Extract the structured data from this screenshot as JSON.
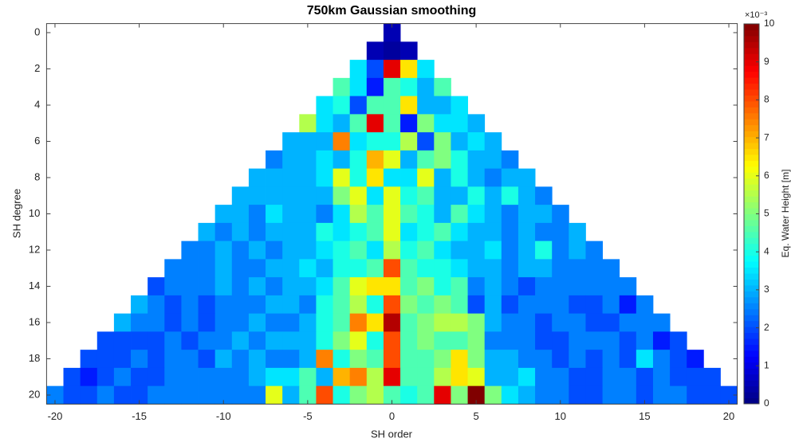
{
  "chart_data": {
    "type": "heatmap",
    "title": "750km Gaussian smoothing",
    "xlabel": "SH order",
    "ylabel": "SH degree",
    "colorbar_label": "Eq. Water Height [m]",
    "colorbar_multiplier": "×10⁻³",
    "colormap": "jet",
    "clim": [
      0,
      10
    ],
    "colorbar_ticks": [
      0,
      1,
      2,
      3,
      4,
      5,
      6,
      7,
      8,
      9,
      10
    ],
    "xlim": [
      -20.5,
      20.5
    ],
    "ylim": [
      -0.5,
      20.5
    ],
    "y_reversed": true,
    "xticks": [
      -20,
      -15,
      -10,
      -5,
      0,
      5,
      10,
      15,
      20
    ],
    "yticks": [
      0,
      2,
      4,
      6,
      8,
      10,
      12,
      14,
      16,
      18,
      20
    ],
    "values": [
      [
        0.5
      ],
      [
        0.5,
        0.3,
        0.5
      ],
      [
        3.5,
        2,
        9,
        6.5,
        3.5
      ],
      [
        4.5,
        3.5,
        1.5,
        4.5,
        4,
        3,
        4.5
      ],
      [
        3.5,
        4,
        2,
        4.5,
        4.5,
        6.5,
        3,
        3,
        3.5
      ],
      [
        5.5,
        3.5,
        3,
        4.5,
        9,
        4.5,
        1.5,
        5,
        3.5,
        3.5,
        3
      ],
      [
        3,
        3,
        3,
        7.5,
        3.5,
        4,
        4,
        5.5,
        2,
        5,
        3,
        3.5,
        3
      ],
      [
        2.5,
        3,
        3,
        3.5,
        3,
        4,
        7,
        6,
        3,
        4.5,
        5,
        4,
        3,
        3,
        2.5
      ],
      [
        3,
        3,
        3,
        3,
        3.5,
        6,
        4,
        6.5,
        3.5,
        3.5,
        6,
        3,
        4,
        3,
        2.5,
        3,
        3
      ],
      [
        3,
        3,
        3,
        3,
        3,
        3,
        5,
        6,
        3.5,
        6,
        4,
        4.5,
        3,
        3,
        4,
        3,
        4,
        3,
        2.5
      ],
      [
        3,
        3,
        2.5,
        3.5,
        3,
        3,
        2.5,
        3.5,
        5.5,
        4.5,
        6,
        4.5,
        4,
        3,
        4.5,
        3.5,
        3,
        2.5,
        3,
        3,
        2.5
      ],
      [
        3,
        2.5,
        3,
        2.5,
        3,
        3,
        3,
        4,
        3.5,
        4,
        4.5,
        6,
        3.5,
        4,
        4.5,
        3.5,
        3,
        3,
        2.5,
        3,
        2.5,
        2.5,
        3
      ],
      [
        2.5,
        2.5,
        3,
        2.5,
        3,
        2.5,
        3,
        3,
        3.5,
        4,
        4.5,
        3.5,
        5.5,
        4,
        4.5,
        3.5,
        3,
        3,
        3.5,
        2.5,
        3,
        4,
        2.5,
        3,
        2.5
      ],
      [
        2.5,
        2.5,
        2.5,
        3,
        2.5,
        2.5,
        3,
        3,
        3.5,
        3,
        4,
        4,
        4.5,
        8,
        4.5,
        4,
        4,
        3.5,
        3,
        3,
        2.5,
        3,
        3,
        2.5,
        2.5,
        2.5,
        2.5
      ],
      [
        2,
        2.5,
        2.5,
        2.5,
        3,
        2.5,
        3,
        2.5,
        3,
        3,
        3.5,
        4.5,
        6,
        6.5,
        6.5,
        4.5,
        5,
        4,
        4.5,
        2.5,
        3,
        2.5,
        2,
        2.5,
        2.5,
        2.5,
        2.5,
        2.5,
        2.5
      ],
      [
        3,
        2.5,
        2,
        2.5,
        2,
        2.5,
        2.5,
        2.5,
        3,
        3,
        2.5,
        4,
        4.5,
        5.5,
        4,
        8,
        5,
        4.5,
        5,
        4.5,
        2,
        3,
        2,
        2.5,
        2.5,
        2.5,
        2,
        2,
        2.5,
        1.5,
        2.5
      ],
      [
        3,
        2.5,
        2.5,
        2,
        2.5,
        2,
        2.5,
        2.5,
        3,
        2.5,
        2.5,
        3,
        4,
        4.5,
        7.5,
        6.5,
        9.5,
        4.5,
        5,
        5.5,
        5.5,
        5,
        3,
        2.5,
        2.5,
        2,
        2.5,
        2.5,
        2,
        2,
        2.5,
        2.5,
        2.5
      ],
      [
        2,
        2,
        2,
        2,
        2.5,
        2,
        2.5,
        2.5,
        3,
        2.5,
        3,
        3,
        3,
        4,
        5,
        6,
        4,
        8,
        4.5,
        5,
        4.5,
        4.5,
        5,
        2.5,
        2.5,
        2.5,
        2,
        2,
        2.5,
        2.5,
        2.5,
        2,
        2.5,
        1.5,
        2
      ],
      [
        2,
        2,
        2,
        2.5,
        2,
        2.5,
        2.5,
        2,
        3,
        2.5,
        3,
        2.5,
        2.5,
        3,
        7.5,
        4,
        5,
        4.5,
        8,
        4.5,
        4.5,
        5,
        6.5,
        5,
        3,
        3,
        2.5,
        2.5,
        2,
        2.5,
        2,
        2.5,
        2,
        3.5,
        2.5,
        2,
        1.5
      ],
      [
        2,
        1.5,
        2,
        2.5,
        2,
        2,
        2.5,
        2.5,
        2.5,
        2.5,
        2.5,
        3,
        3.5,
        3.5,
        4.5,
        3,
        7,
        7.5,
        5.5,
        9,
        4.5,
        4.5,
        5.5,
        6.5,
        6,
        3,
        3,
        3.5,
        2.5,
        2.5,
        2,
        2,
        2.5,
        2.5,
        2,
        2.5,
        2,
        2,
        2
      ],
      [
        2.5,
        2,
        2,
        2.5,
        2,
        2,
        2.5,
        2.5,
        2.5,
        2.5,
        2.5,
        2.5,
        2.5,
        6,
        3,
        4.5,
        8,
        4,
        5,
        5.5,
        4.5,
        4,
        4.5,
        9,
        5,
        10,
        5,
        3.5,
        3,
        2.5,
        2.5,
        2,
        2,
        2.5,
        2.5,
        2,
        2.5,
        2.5,
        2,
        2,
        2
      ]
    ]
  }
}
